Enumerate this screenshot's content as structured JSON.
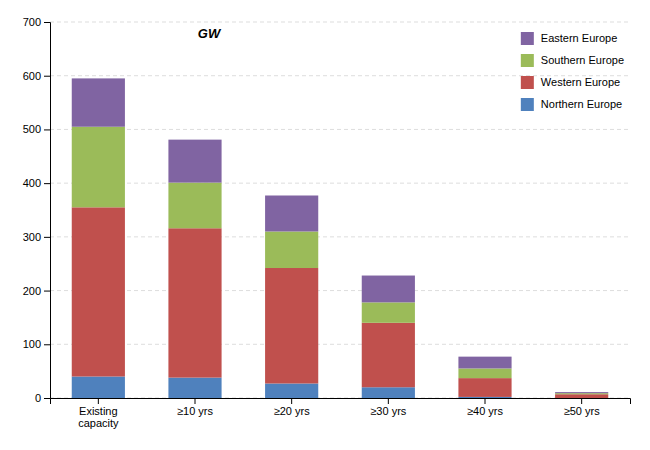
{
  "chart_data": {
    "type": "bar",
    "stacked": true,
    "ylabel": "GW",
    "categories": [
      "Existing\ncapacity",
      "≥10 yrs",
      "≥20 yrs",
      "≥30 yrs",
      "≥40 yrs",
      "≥50 yrs"
    ],
    "series": [
      {
        "name": "Northern Europe",
        "color": "#4f81bd",
        "values": [
          40,
          38,
          27,
          20,
          2,
          0
        ]
      },
      {
        "name": "Western Europe",
        "color": "#c0504d",
        "values": [
          315,
          278,
          215,
          120,
          35,
          7
        ]
      },
      {
        "name": "Southern Europe",
        "color": "#9bbb59",
        "values": [
          150,
          85,
          68,
          38,
          18,
          2
        ]
      },
      {
        "name": "Eastern Europe",
        "color": "#8064a2",
        "values": [
          90,
          80,
          67,
          50,
          22,
          2
        ]
      }
    ],
    "ylim": [
      0,
      700
    ],
    "yticks": [
      0,
      100,
      200,
      300,
      400,
      500,
      600,
      700
    ],
    "grid": true,
    "legend": "upper right"
  }
}
